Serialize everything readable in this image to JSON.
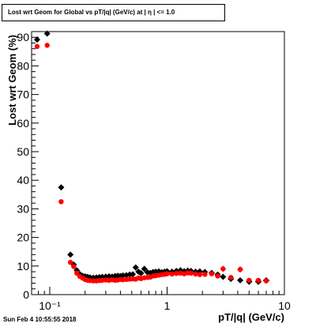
{
  "title": "Lost wrt Geom for Global vs pT/|q| (GeV/c) at |  η | <= 1.0",
  "datestamp": "Sun Feb  4 10:55:55 2018",
  "chart_data": {
    "type": "scatter",
    "xlabel": "pT/|q| (GeV/c)",
    "ylabel": "Lost wrt Geom (%)",
    "x_scale": "log",
    "xlim": [
      0.07,
      10
    ],
    "ylim": [
      0,
      92
    ],
    "x_ticks": [
      {
        "v": 0.1,
        "label": "10⁻¹"
      },
      {
        "v": 1,
        "label": "1"
      },
      {
        "v": 10,
        "label": "10"
      }
    ],
    "y_ticks": [
      {
        "v": 0,
        "label": "0"
      },
      {
        "v": 10,
        "label": "10"
      },
      {
        "v": 20,
        "label": "20"
      },
      {
        "v": 30,
        "label": "30"
      },
      {
        "v": 40,
        "label": "40"
      },
      {
        "v": 50,
        "label": "50"
      },
      {
        "v": 60,
        "label": "60"
      },
      {
        "v": 70,
        "label": "70"
      },
      {
        "v": 80,
        "label": "80"
      },
      {
        "v": 90,
        "label": "90"
      }
    ],
    "series": [
      {
        "color": "#000000",
        "marker": "diamond",
        "points": [
          {
            "x": 0.078,
            "y": 89.2
          },
          {
            "x": 0.095,
            "y": 91.3
          },
          {
            "x": 0.125,
            "y": 37.5
          },
          {
            "x": 0.15,
            "y": 14.0
          },
          {
            "x": 0.16,
            "y": 10.5
          },
          {
            "x": 0.17,
            "y": 8.5
          },
          {
            "x": 0.18,
            "y": 7.2
          },
          {
            "x": 0.19,
            "y": 6.6
          },
          {
            "x": 0.2,
            "y": 6.4
          },
          {
            "x": 0.21,
            "y": 6.2
          },
          {
            "x": 0.22,
            "y": 6.0
          },
          {
            "x": 0.235,
            "y": 5.9
          },
          {
            "x": 0.25,
            "y": 6.0
          },
          {
            "x": 0.265,
            "y": 6.1
          },
          {
            "x": 0.28,
            "y": 6.2
          },
          {
            "x": 0.3,
            "y": 6.3
          },
          {
            "x": 0.32,
            "y": 6.4
          },
          {
            "x": 0.34,
            "y": 6.3
          },
          {
            "x": 0.36,
            "y": 6.5
          },
          {
            "x": 0.38,
            "y": 6.6
          },
          {
            "x": 0.4,
            "y": 6.5
          },
          {
            "x": 0.42,
            "y": 6.7
          },
          {
            "x": 0.45,
            "y": 6.8
          },
          {
            "x": 0.48,
            "y": 7.0
          },
          {
            "x": 0.51,
            "y": 7.1
          },
          {
            "x": 0.54,
            "y": 9.5
          },
          {
            "x": 0.57,
            "y": 8.0
          },
          {
            "x": 0.6,
            "y": 7.5
          },
          {
            "x": 0.64,
            "y": 9.0
          },
          {
            "x": 0.68,
            "y": 7.8
          },
          {
            "x": 0.72,
            "y": 7.6
          },
          {
            "x": 0.76,
            "y": 7.9
          },
          {
            "x": 0.8,
            "y": 8.0
          },
          {
            "x": 0.85,
            "y": 8.1
          },
          {
            "x": 0.9,
            "y": 7.8
          },
          {
            "x": 0.95,
            "y": 8.0
          },
          {
            "x": 1.0,
            "y": 8.2
          },
          {
            "x": 1.1,
            "y": 8.0
          },
          {
            "x": 1.2,
            "y": 8.3
          },
          {
            "x": 1.3,
            "y": 8.5
          },
          {
            "x": 1.4,
            "y": 8.2
          },
          {
            "x": 1.5,
            "y": 8.4
          },
          {
            "x": 1.6,
            "y": 8.3
          },
          {
            "x": 1.75,
            "y": 8.0
          },
          {
            "x": 1.9,
            "y": 8.1
          },
          {
            "x": 2.1,
            "y": 7.9
          },
          {
            "x": 2.4,
            "y": 7.6
          },
          {
            "x": 2.7,
            "y": 7.0
          },
          {
            "x": 3.0,
            "y": 6.2
          },
          {
            "x": 3.5,
            "y": 5.5
          },
          {
            "x": 4.2,
            "y": 5.0
          },
          {
            "x": 5.0,
            "y": 4.5
          },
          {
            "x": 6.0,
            "y": 4.5
          },
          {
            "x": 7.0,
            "y": 5.0
          }
        ]
      },
      {
        "color": "#ff0000",
        "marker": "circle",
        "points": [
          {
            "x": 0.078,
            "y": 86.8
          },
          {
            "x": 0.095,
            "y": 87.2
          },
          {
            "x": 0.125,
            "y": 32.5
          },
          {
            "x": 0.15,
            "y": 11.3
          },
          {
            "x": 0.16,
            "y": 9.8
          },
          {
            "x": 0.17,
            "y": 7.5
          },
          {
            "x": 0.18,
            "y": 6.4
          },
          {
            "x": 0.19,
            "y": 5.8
          },
          {
            "x": 0.2,
            "y": 5.3
          },
          {
            "x": 0.21,
            "y": 5.0
          },
          {
            "x": 0.22,
            "y": 4.9
          },
          {
            "x": 0.235,
            "y": 4.8
          },
          {
            "x": 0.25,
            "y": 4.8
          },
          {
            "x": 0.265,
            "y": 4.9
          },
          {
            "x": 0.28,
            "y": 5.0
          },
          {
            "x": 0.3,
            "y": 5.1
          },
          {
            "x": 0.32,
            "y": 5.0
          },
          {
            "x": 0.34,
            "y": 5.2
          },
          {
            "x": 0.36,
            "y": 5.0
          },
          {
            "x": 0.38,
            "y": 5.1
          },
          {
            "x": 0.4,
            "y": 5.3
          },
          {
            "x": 0.42,
            "y": 5.2
          },
          {
            "x": 0.45,
            "y": 5.3
          },
          {
            "x": 0.48,
            "y": 5.4
          },
          {
            "x": 0.51,
            "y": 5.5
          },
          {
            "x": 0.54,
            "y": 5.4
          },
          {
            "x": 0.57,
            "y": 5.8
          },
          {
            "x": 0.6,
            "y": 5.6
          },
          {
            "x": 0.64,
            "y": 5.9
          },
          {
            "x": 0.68,
            "y": 6.0
          },
          {
            "x": 0.72,
            "y": 6.1
          },
          {
            "x": 0.76,
            "y": 6.5
          },
          {
            "x": 0.8,
            "y": 6.6
          },
          {
            "x": 0.85,
            "y": 6.8
          },
          {
            "x": 0.9,
            "y": 7.0
          },
          {
            "x": 0.95,
            "y": 7.1
          },
          {
            "x": 1.0,
            "y": 7.3
          },
          {
            "x": 1.1,
            "y": 7.2
          },
          {
            "x": 1.2,
            "y": 7.4
          },
          {
            "x": 1.3,
            "y": 7.5
          },
          {
            "x": 1.4,
            "y": 7.3
          },
          {
            "x": 1.5,
            "y": 7.6
          },
          {
            "x": 1.6,
            "y": 7.5
          },
          {
            "x": 1.75,
            "y": 7.2
          },
          {
            "x": 1.9,
            "y": 7.0
          },
          {
            "x": 2.1,
            "y": 7.1
          },
          {
            "x": 2.4,
            "y": 7.3
          },
          {
            "x": 2.7,
            "y": 6.5
          },
          {
            "x": 3.0,
            "y": 9.0
          },
          {
            "x": 3.5,
            "y": 6.0
          },
          {
            "x": 4.2,
            "y": 8.8
          },
          {
            "x": 5.0,
            "y": 5.0
          },
          {
            "x": 6.0,
            "y": 5.0
          },
          {
            "x": 7.0,
            "y": 4.8
          }
        ]
      }
    ]
  }
}
